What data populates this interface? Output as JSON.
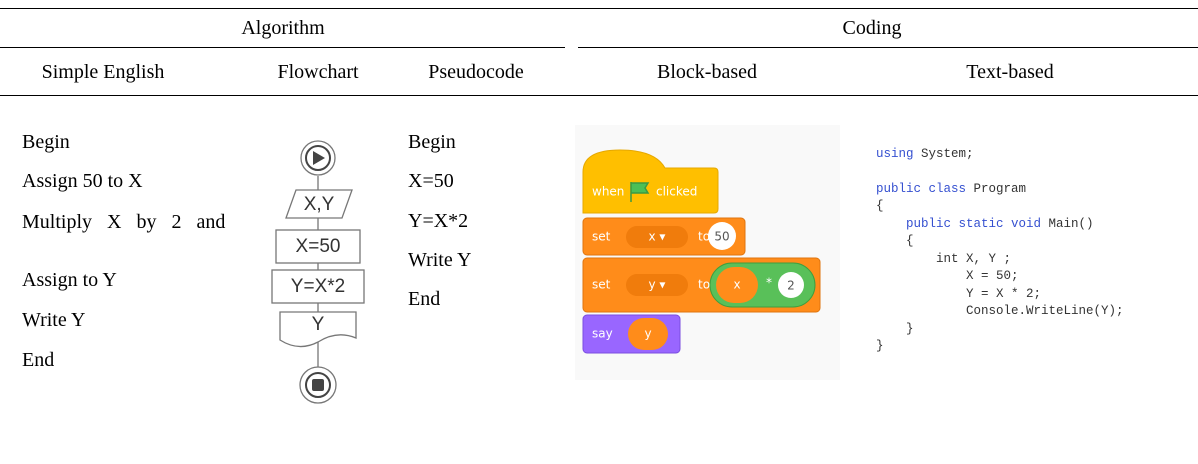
{
  "header": {
    "groups": [
      "Algorithm",
      "Coding"
    ],
    "columns": [
      "Simple English",
      "Flowchart",
      "Pseudocode",
      "Block-based",
      "Text-based"
    ]
  },
  "simple_english": [
    "Begin",
    "Assign 50 to X",
    "Multiply X by 2 and",
    "Assign to Y",
    "Write Y",
    "End"
  ],
  "flowchart": {
    "nodes": [
      "X,Y",
      "X=50",
      "Y=X*2",
      "Y"
    ]
  },
  "pseudocode": [
    "Begin",
    "X=50",
    "Y=X*2",
    "Write Y",
    "End"
  ],
  "block_based": {
    "blocks": [
      {
        "parts": [
          "when",
          "clicked"
        ]
      },
      {
        "parts": [
          "set",
          "x ▾",
          "to",
          "50"
        ]
      },
      {
        "parts": [
          "set",
          "y ▾",
          "to",
          "x",
          "*",
          "2"
        ]
      },
      {
        "parts": [
          "say",
          "y"
        ]
      }
    ]
  },
  "text_based": {
    "lines": [
      [
        {
          "text": "using",
          "style": "keyword"
        },
        {
          "text": " System;",
          "style": "plain"
        }
      ],
      [
        {
          "text": "public class",
          "style": "keyword"
        },
        {
          "text": " Program",
          "style": "plain"
        }
      ],
      [
        {
          "text": "{",
          "style": "plain"
        }
      ],
      [
        {
          "text": "    public static void",
          "style": "keyword"
        },
        {
          "text": " Main()",
          "style": "plain"
        }
      ],
      [
        {
          "text": "    {",
          "style": "plain"
        }
      ],
      [
        {
          "text": "        int X, Y ;",
          "style": "plain"
        }
      ],
      [
        {
          "text": "            X = 50;",
          "style": "plain"
        }
      ],
      [
        {
          "text": "            Y = X * 2;",
          "style": "plain"
        }
      ],
      [
        {
          "text": "            Console.WriteLine(Y);",
          "style": "plain"
        }
      ],
      [
        {
          "text": "    }",
          "style": "plain"
        }
      ],
      [
        {
          "text": "}",
          "style": "plain"
        }
      ]
    ]
  }
}
